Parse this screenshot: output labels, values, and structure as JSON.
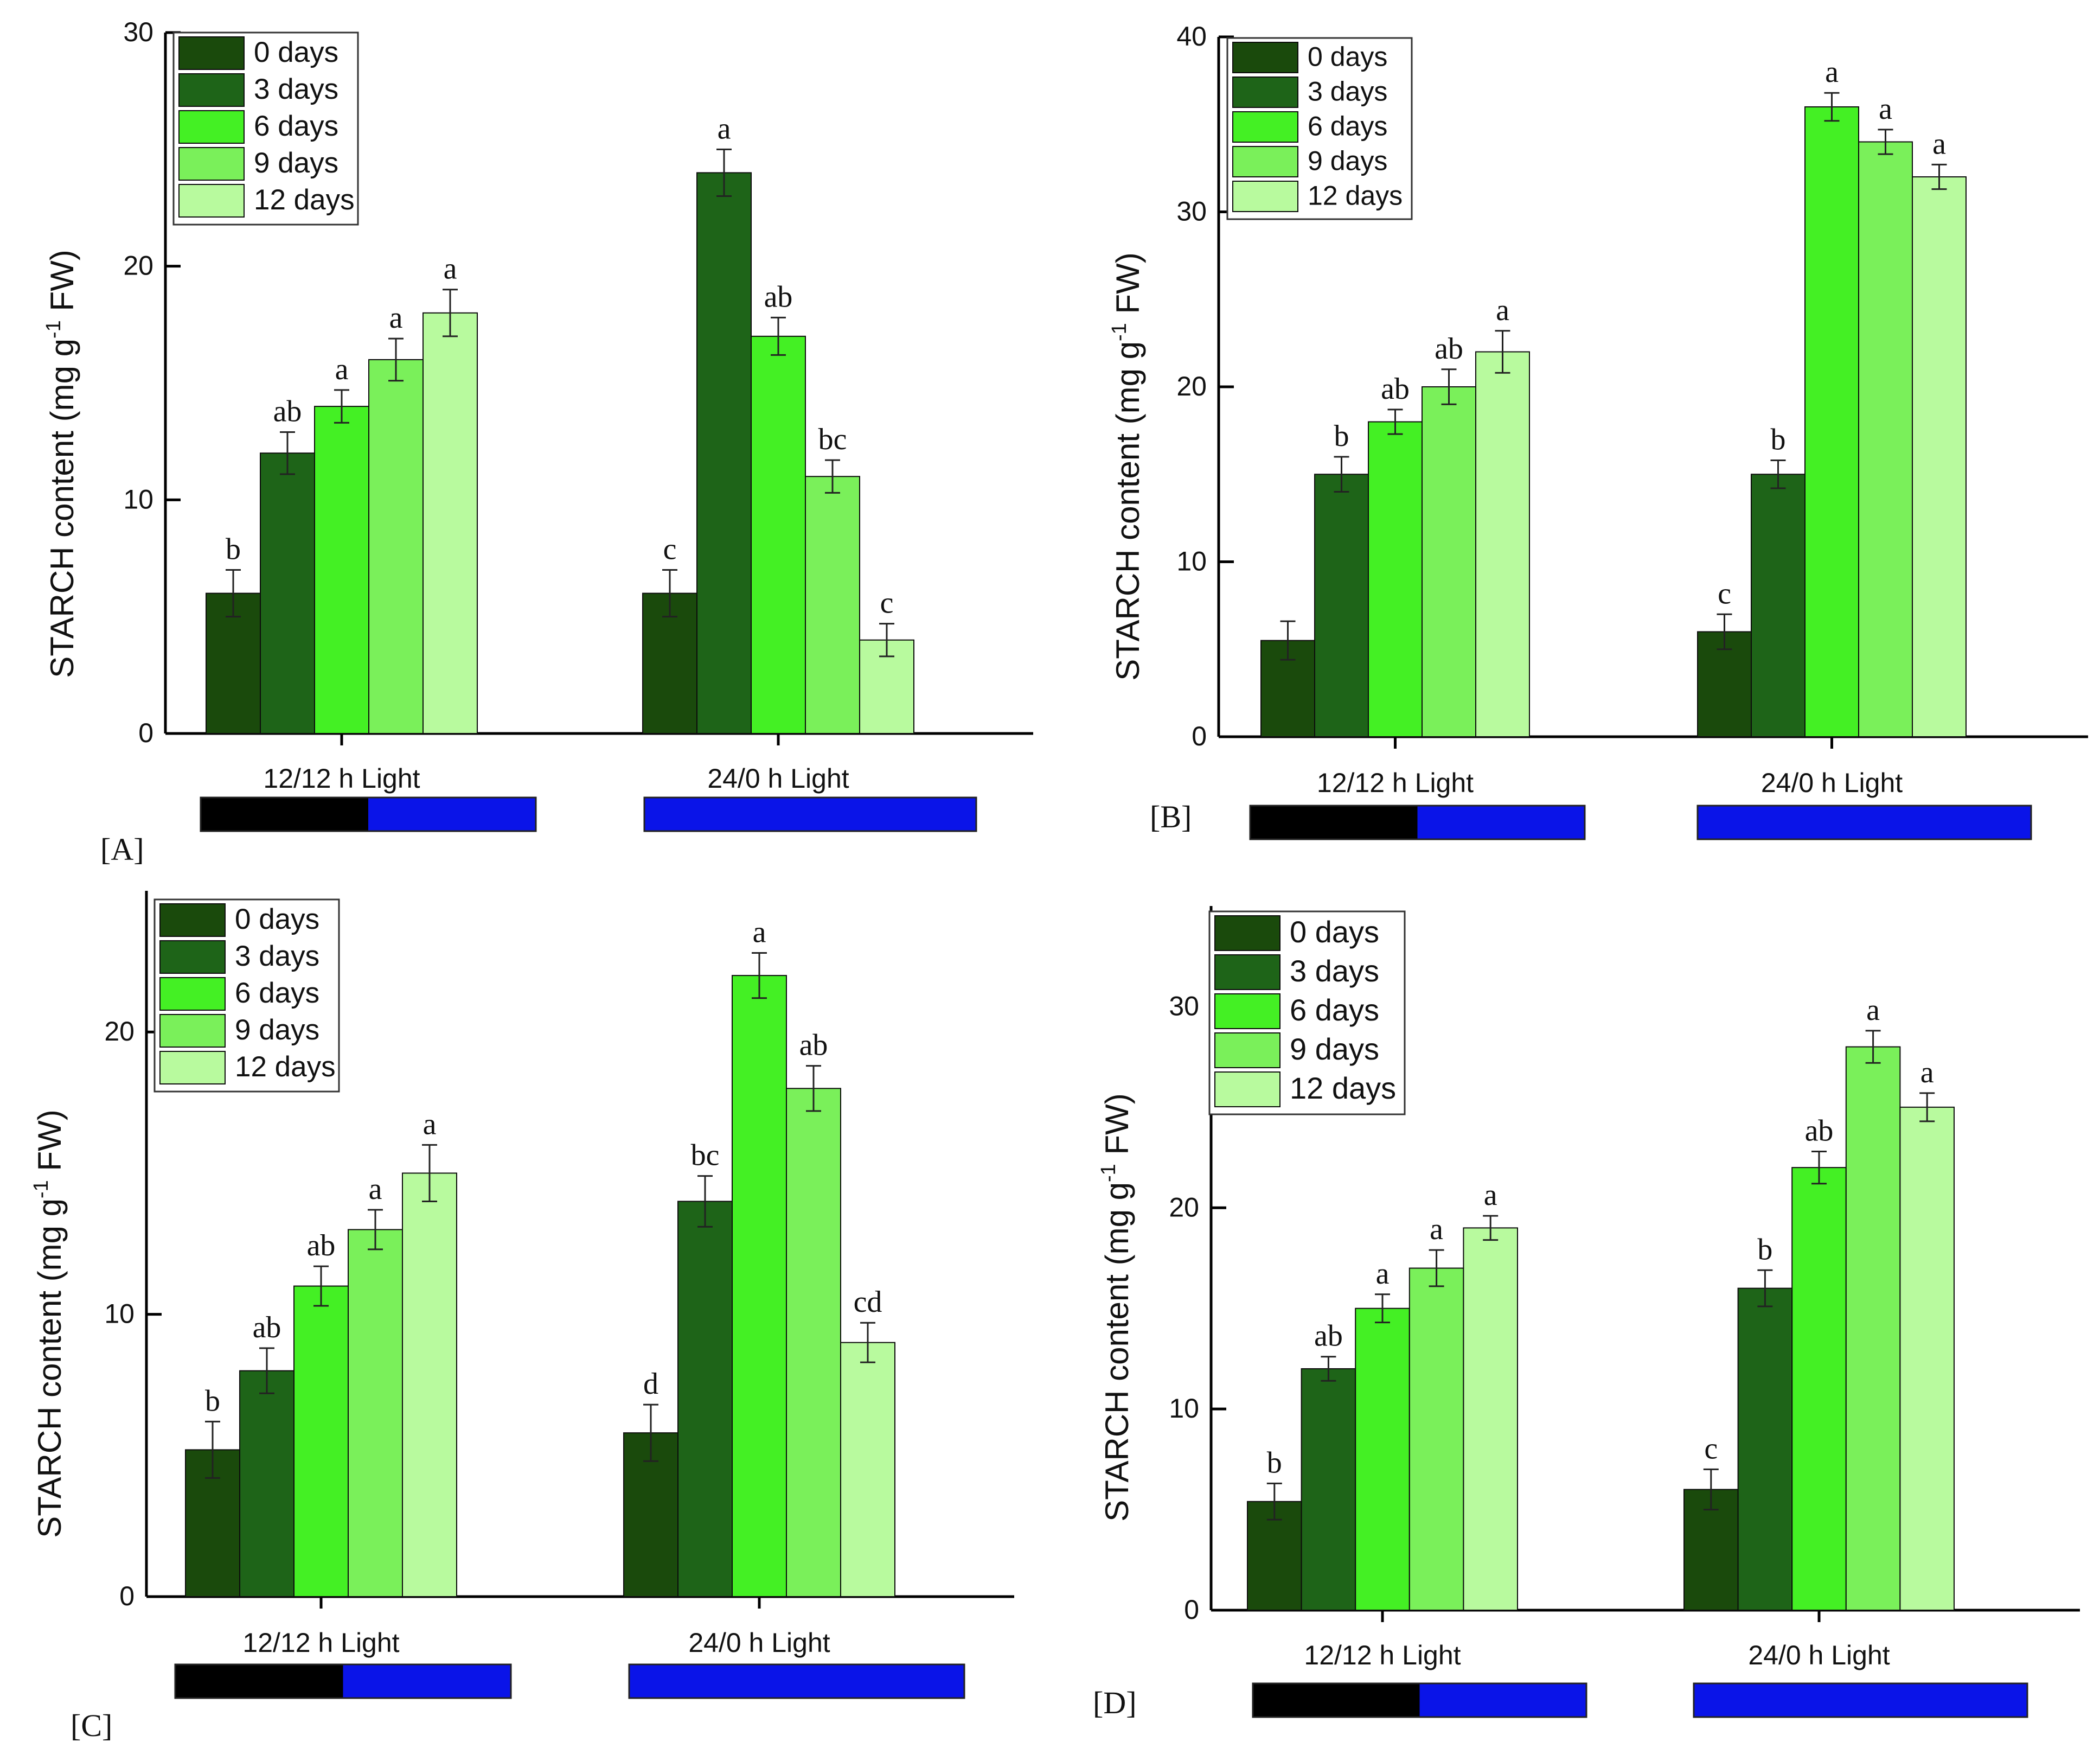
{
  "figure": {
    "legend_entries": [
      "0 days",
      "3 days",
      "6 days",
      "9 days",
      "12 days"
    ],
    "legend_colors": [
      "#1a4a0c",
      "#1e6418",
      "#44f024",
      "#7af05a",
      "#b8fa9e"
    ],
    "photoperiod_colors": {
      "dark": "#000000",
      "light": "#0a14e8"
    }
  },
  "chart_data": [
    {
      "type": "bar",
      "panel": "[A]",
      "ylabel": "STARCH content (mg g-1 FW)",
      "ylim": [
        0,
        30
      ],
      "yticks": [
        0,
        10,
        20,
        30
      ],
      "legend_position": "top-left",
      "categories": [
        "12/12 h Light",
        "24/0 h Light"
      ],
      "photoperiod_bars": [
        [
          "dark",
          "light"
        ],
        [
          "light"
        ]
      ],
      "series": [
        {
          "name": "0 days",
          "values": [
            6,
            6
          ],
          "errors": [
            1.0,
            1.0
          ],
          "labels": [
            "b",
            "c"
          ]
        },
        {
          "name": "3 days",
          "values": [
            12,
            24
          ],
          "errors": [
            0.9,
            1.0
          ],
          "labels": [
            "ab",
            "a"
          ]
        },
        {
          "name": "6 days",
          "values": [
            14,
            17
          ],
          "errors": [
            0.7,
            0.8
          ],
          "labels": [
            "a",
            "ab"
          ]
        },
        {
          "name": "9 days",
          "values": [
            16,
            11
          ],
          "errors": [
            0.9,
            0.7
          ],
          "labels": [
            "a",
            "bc"
          ]
        },
        {
          "name": "12 days",
          "values": [
            18,
            4
          ],
          "errors": [
            1.0,
            0.7
          ],
          "labels": [
            "a",
            "c"
          ]
        }
      ]
    },
    {
      "type": "bar",
      "panel": "[B]",
      "ylabel": "STARCH content (mg g-1 FW)",
      "ylim": [
        0,
        40
      ],
      "yticks": [
        0,
        10,
        20,
        30,
        40
      ],
      "legend_position": "top-left",
      "categories": [
        "12/12 h Light",
        "24/0 h Light"
      ],
      "photoperiod_bars": [
        [
          "dark",
          "light"
        ],
        [
          "light"
        ]
      ],
      "series": [
        {
          "name": "0 days",
          "values": [
            5.5,
            6
          ],
          "errors": [
            1.1,
            1.0
          ],
          "labels": [
            "",
            "c"
          ]
        },
        {
          "name": "3 days",
          "values": [
            15,
            15
          ],
          "errors": [
            1.0,
            0.8
          ],
          "labels": [
            "b",
            "b"
          ]
        },
        {
          "name": "6 days",
          "values": [
            18,
            36
          ],
          "errors": [
            0.7,
            0.8
          ],
          "labels": [
            "ab",
            "a"
          ]
        },
        {
          "name": "9 days",
          "values": [
            20,
            34
          ],
          "errors": [
            1.0,
            0.7
          ],
          "labels": [
            "ab",
            "a"
          ]
        },
        {
          "name": "12 days",
          "values": [
            22,
            32
          ],
          "errors": [
            1.2,
            0.7
          ],
          "labels": [
            "a",
            "a"
          ]
        }
      ]
    },
    {
      "type": "bar",
      "panel": "[C]",
      "ylabel": "STARCH content (mg g-1 FW)",
      "ylim": [
        0,
        25
      ],
      "yticks": [
        0,
        10,
        20
      ],
      "legend_position": "top-left",
      "categories": [
        "12/12 h Light",
        "24/0 h Light"
      ],
      "photoperiod_bars": [
        [
          "dark",
          "light"
        ],
        [
          "light"
        ]
      ],
      "series": [
        {
          "name": "0 days",
          "values": [
            5.2,
            5.8
          ],
          "errors": [
            1.0,
            1.0
          ],
          "labels": [
            "b",
            "d"
          ]
        },
        {
          "name": "3 days",
          "values": [
            8,
            14
          ],
          "errors": [
            0.8,
            0.9
          ],
          "labels": [
            "ab",
            "bc"
          ]
        },
        {
          "name": "6 days",
          "values": [
            11,
            22
          ],
          "errors": [
            0.7,
            0.8
          ],
          "labels": [
            "ab",
            "a"
          ]
        },
        {
          "name": "9 days",
          "values": [
            13,
            18
          ],
          "errors": [
            0.7,
            0.8
          ],
          "labels": [
            "a",
            "ab"
          ]
        },
        {
          "name": "12 days",
          "values": [
            15,
            9
          ],
          "errors": [
            1.0,
            0.7
          ],
          "labels": [
            "a",
            "cd"
          ]
        }
      ]
    },
    {
      "type": "bar",
      "panel": "[D]",
      "ylabel": "STARCH content (mg g-1 FW)",
      "ylim": [
        0,
        35
      ],
      "yticks": [
        0,
        10,
        20,
        30
      ],
      "legend_position": "top-left",
      "categories": [
        "12/12 h Light",
        "24/0 h Light"
      ],
      "photoperiod_bars": [
        [
          "dark",
          "light"
        ],
        [
          "light"
        ]
      ],
      "series": [
        {
          "name": "0 days",
          "values": [
            5.4,
            6
          ],
          "errors": [
            0.9,
            1.0
          ],
          "labels": [
            "b",
            "c"
          ]
        },
        {
          "name": "3 days",
          "values": [
            12,
            16
          ],
          "errors": [
            0.6,
            0.9
          ],
          "labels": [
            "ab",
            "b"
          ]
        },
        {
          "name": "6 days",
          "values": [
            15,
            22
          ],
          "errors": [
            0.7,
            0.8
          ],
          "labels": [
            "a",
            "ab"
          ]
        },
        {
          "name": "9 days",
          "values": [
            17,
            28
          ],
          "errors": [
            0.9,
            0.8
          ],
          "labels": [
            "a",
            "a"
          ]
        },
        {
          "name": "12 days",
          "values": [
            19,
            25
          ],
          "errors": [
            0.6,
            0.7
          ],
          "labels": [
            "a",
            "a"
          ]
        }
      ]
    }
  ]
}
